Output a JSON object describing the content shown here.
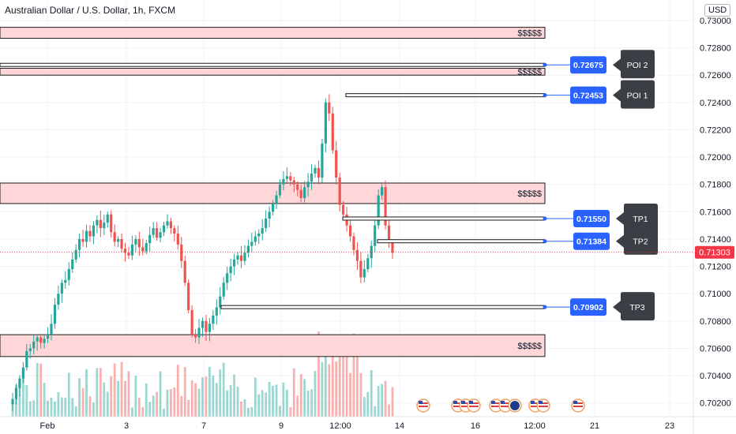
{
  "header": {
    "title": "Australian Dollar / U.S. Dollar, 1h, FXCM",
    "currency_badge": "USD"
  },
  "colors": {
    "up": "#26a69a",
    "down": "#ef5350",
    "zone_fill": "#ffd7d9",
    "zone_border": "#1a1a1a",
    "label_bg": "#2962ff",
    "callout_bg": "#3b3f45",
    "price_badge": "#f23645"
  },
  "chart_data": {
    "type": "candlestick",
    "ylim": [
      0.701,
      0.7315
    ],
    "y_ticks": [
      "0.73000",
      "0.72800",
      "0.72600",
      "0.72400",
      "0.72200",
      "0.72000",
      "0.71800",
      "0.71600",
      "0.71400",
      "0.71200",
      "0.71000",
      "0.70800",
      "0.70600",
      "0.70400",
      "0.70200"
    ],
    "x_ticks": [
      "Feb",
      "3",
      "7",
      "9",
      "12:00",
      "14",
      "16",
      "12:00",
      "21",
      "23"
    ],
    "current_price": "0.71303",
    "supply_demand_zones": [
      {
        "label": "$$$$$",
        "top": 0.7295,
        "bottom": 0.7287
      },
      {
        "label": "$$$$$",
        "top": 0.7265,
        "bottom": 0.726
      },
      {
        "label": "$$$$$",
        "top": 0.7181,
        "bottom": 0.7166
      },
      {
        "label": "$$$$$",
        "top": 0.707,
        "bottom": 0.7054
      }
    ],
    "levels": [
      {
        "value": 0.72675,
        "label": "0.72675",
        "tag": "POI 2"
      },
      {
        "value": 0.72453,
        "label": "0.72453",
        "tag": "POI 1"
      },
      {
        "value": 0.7155,
        "label": "0.71550",
        "tag": "TP1"
      },
      {
        "value": 0.71384,
        "label": "0.71384",
        "tag": "TP2"
      },
      {
        "value": 0.70902,
        "label": "0.70902",
        "tag": "TP3"
      }
    ],
    "close_series": [
      0.7023,
      0.7031,
      0.7038,
      0.7046,
      0.7058,
      0.706,
      0.7065,
      0.7068,
      0.7064,
      0.7067,
      0.707,
      0.7078,
      0.7092,
      0.71,
      0.7108,
      0.711,
      0.7118,
      0.7125,
      0.7132,
      0.714,
      0.7138,
      0.7146,
      0.7142,
      0.715,
      0.7154,
      0.7148,
      0.7152,
      0.7158,
      0.7145,
      0.7138,
      0.714,
      0.7133,
      0.713,
      0.7128,
      0.7136,
      0.714,
      0.7134,
      0.7131,
      0.7137,
      0.7143,
      0.7148,
      0.7141,
      0.7145,
      0.715,
      0.7153,
      0.7148,
      0.7144,
      0.7136,
      0.7124,
      0.7108,
      0.7088,
      0.707,
      0.7068,
      0.7075,
      0.708,
      0.7072,
      0.7078,
      0.7084,
      0.709,
      0.7098,
      0.7108,
      0.7115,
      0.712,
      0.7125,
      0.7128,
      0.7124,
      0.713,
      0.7135,
      0.7138,
      0.7142,
      0.7144,
      0.7148,
      0.7155,
      0.716,
      0.7166,
      0.7172,
      0.718,
      0.7184,
      0.7186,
      0.7183,
      0.718,
      0.7176,
      0.717,
      0.7178,
      0.7182,
      0.7188,
      0.7192,
      0.7185,
      0.721,
      0.724,
      0.7232,
      0.7205,
      0.7185,
      0.7165,
      0.7158,
      0.715,
      0.7142,
      0.7132,
      0.7124,
      0.7112,
      0.7118,
      0.7126,
      0.7135,
      0.715,
      0.7172,
      0.7178,
      0.715,
      0.7138,
      0.713
    ]
  },
  "event_icons": [
    "us-flag-icon",
    "us-flag-icon",
    "us-flag-icon",
    "us-flag-icon",
    "us-flag-icon",
    "us-flag-icon",
    "au-flag-icon",
    "us-flag-icon",
    "us-flag-icon",
    "us-flag-icon"
  ]
}
